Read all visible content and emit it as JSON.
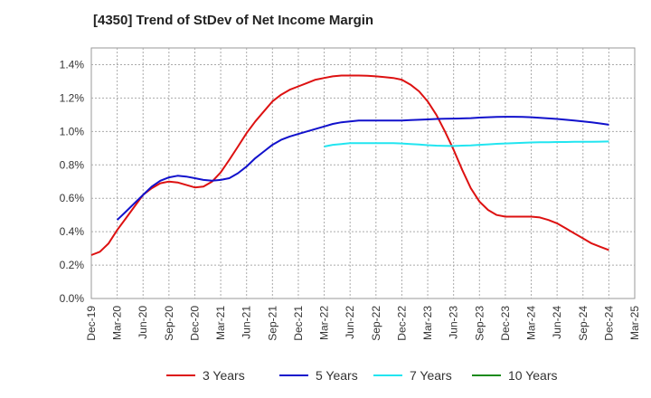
{
  "chart_data": {
    "type": "line",
    "title": "[4350]  Trend of StDev of Net Income Margin",
    "xlabel": "",
    "ylabel": "",
    "x_ticks": [
      "Dec-19",
      "Mar-20",
      "Jun-20",
      "Sep-20",
      "Dec-20",
      "Mar-21",
      "Jun-21",
      "Sep-21",
      "Dec-21",
      "Mar-22",
      "Jun-22",
      "Sep-22",
      "Dec-22",
      "Mar-23",
      "Jun-23",
      "Sep-23",
      "Dec-23",
      "Mar-24",
      "Jun-24",
      "Sep-24",
      "Dec-24",
      "Mar-25"
    ],
    "y_ticks": [
      "0.0%",
      "0.2%",
      "0.4%",
      "0.6%",
      "0.8%",
      "1.0%",
      "1.2%",
      "1.4%"
    ],
    "ylim": [
      0,
      1.5
    ],
    "y_unit": "%",
    "grid": true,
    "legend_position": "bottom",
    "series": [
      {
        "name": "3 Years",
        "color": "#dd1111",
        "x": [
          "Dec-19",
          "Jan-20",
          "Feb-20",
          "Mar-20",
          "Apr-20",
          "May-20",
          "Jun-20",
          "Jul-20",
          "Aug-20",
          "Sep-20",
          "Oct-20",
          "Nov-20",
          "Dec-20",
          "Jan-21",
          "Feb-21",
          "Mar-21",
          "Apr-21",
          "May-21",
          "Jun-21",
          "Jul-21",
          "Aug-21",
          "Sep-21",
          "Oct-21",
          "Nov-21",
          "Dec-21",
          "Jan-22",
          "Feb-22",
          "Mar-22",
          "Apr-22",
          "May-22",
          "Jun-22",
          "Jul-22",
          "Aug-22",
          "Sep-22",
          "Oct-22",
          "Nov-22",
          "Dec-22",
          "Jan-23",
          "Feb-23",
          "Mar-23",
          "Apr-23",
          "May-23",
          "Jun-23",
          "Jul-23",
          "Aug-23",
          "Sep-23",
          "Oct-23",
          "Nov-23",
          "Dec-23",
          "Jan-24",
          "Feb-24",
          "Mar-24",
          "Apr-24",
          "May-24",
          "Jun-24",
          "Jul-24",
          "Aug-24",
          "Sep-24",
          "Oct-24",
          "Nov-24",
          "Dec-24"
        ],
        "values": [
          0.26,
          0.28,
          0.33,
          0.41,
          0.48,
          0.55,
          0.62,
          0.66,
          0.69,
          0.7,
          0.695,
          0.68,
          0.665,
          0.67,
          0.7,
          0.755,
          0.83,
          0.91,
          0.99,
          1.06,
          1.12,
          1.18,
          1.22,
          1.25,
          1.27,
          1.29,
          1.31,
          1.32,
          1.33,
          1.335,
          1.335,
          1.335,
          1.333,
          1.33,
          1.325,
          1.32,
          1.31,
          1.28,
          1.24,
          1.18,
          1.1,
          1.0,
          0.89,
          0.77,
          0.66,
          0.58,
          0.53,
          0.5,
          0.49,
          0.49,
          0.49,
          0.49,
          0.485,
          0.47,
          0.45,
          0.42,
          0.39,
          0.36,
          0.33,
          0.31,
          0.29
        ]
      },
      {
        "name": "5 Years",
        "color": "#1111cc",
        "x": [
          "Dec-19",
          "Jan-20",
          "Feb-20",
          "Mar-20",
          "Apr-20",
          "May-20",
          "Jun-20",
          "Jul-20",
          "Aug-20",
          "Sep-20",
          "Oct-20",
          "Nov-20",
          "Dec-20",
          "Jan-21",
          "Feb-21",
          "Mar-21",
          "Apr-21",
          "May-21",
          "Jun-21",
          "Jul-21",
          "Aug-21",
          "Sep-21",
          "Oct-21",
          "Nov-21",
          "Dec-21",
          "Jan-22",
          "Feb-22",
          "Mar-22",
          "Apr-22",
          "May-22",
          "Jun-22",
          "Jul-22",
          "Aug-22",
          "Sep-22",
          "Oct-22",
          "Nov-22",
          "Dec-22",
          "Jan-23",
          "Feb-23",
          "Mar-23",
          "Apr-23",
          "May-23",
          "Jun-23",
          "Jul-23",
          "Aug-23",
          "Sep-23",
          "Oct-23",
          "Nov-23",
          "Dec-23",
          "Jan-24",
          "Feb-24",
          "Mar-24",
          "Apr-24",
          "May-24",
          "Jun-24",
          "Jul-24",
          "Aug-24",
          "Sep-24",
          "Oct-24",
          "Nov-24",
          "Dec-24"
        ],
        "values": [
          null,
          null,
          null,
          0.47,
          0.52,
          0.57,
          0.62,
          0.67,
          0.705,
          0.725,
          0.735,
          0.73,
          0.72,
          0.71,
          0.705,
          0.71,
          0.72,
          0.75,
          0.79,
          0.84,
          0.88,
          0.92,
          0.95,
          0.97,
          0.985,
          1.0,
          1.015,
          1.03,
          1.045,
          1.055,
          1.06,
          1.065,
          1.065,
          1.065,
          1.065,
          1.065,
          1.065,
          1.068,
          1.07,
          1.072,
          1.075,
          1.076,
          1.077,
          1.078,
          1.08,
          1.083,
          1.085,
          1.087,
          1.088,
          1.088,
          1.087,
          1.085,
          1.082,
          1.078,
          1.075,
          1.07,
          1.065,
          1.06,
          1.055,
          1.048,
          1.04
        ]
      },
      {
        "name": "7 Years",
        "color": "#22e5f0",
        "x": [
          "Mar-22",
          "Apr-22",
          "May-22",
          "Jun-22",
          "Jul-22",
          "Aug-22",
          "Sep-22",
          "Oct-22",
          "Nov-22",
          "Dec-22",
          "Jan-23",
          "Feb-23",
          "Mar-23",
          "Apr-23",
          "May-23",
          "Jun-23",
          "Jul-23",
          "Aug-23",
          "Sep-23",
          "Oct-23",
          "Nov-23",
          "Dec-23",
          "Jan-24",
          "Feb-24",
          "Mar-24",
          "Apr-24",
          "May-24",
          "Jun-24",
          "Jul-24",
          "Aug-24",
          "Sep-24",
          "Oct-24",
          "Nov-24",
          "Dec-24"
        ],
        "values": [
          0.91,
          0.92,
          0.925,
          0.93,
          0.93,
          0.93,
          0.93,
          0.93,
          0.93,
          0.928,
          0.925,
          0.922,
          0.918,
          0.915,
          0.914,
          0.913,
          0.915,
          0.917,
          0.92,
          0.923,
          0.926,
          0.928,
          0.93,
          0.932,
          0.934,
          0.935,
          0.936,
          0.937,
          0.937,
          0.938,
          0.938,
          0.938,
          0.939,
          0.94
        ]
      },
      {
        "name": "10 Years",
        "color": "#1a8a1a",
        "x": [],
        "values": []
      }
    ]
  }
}
